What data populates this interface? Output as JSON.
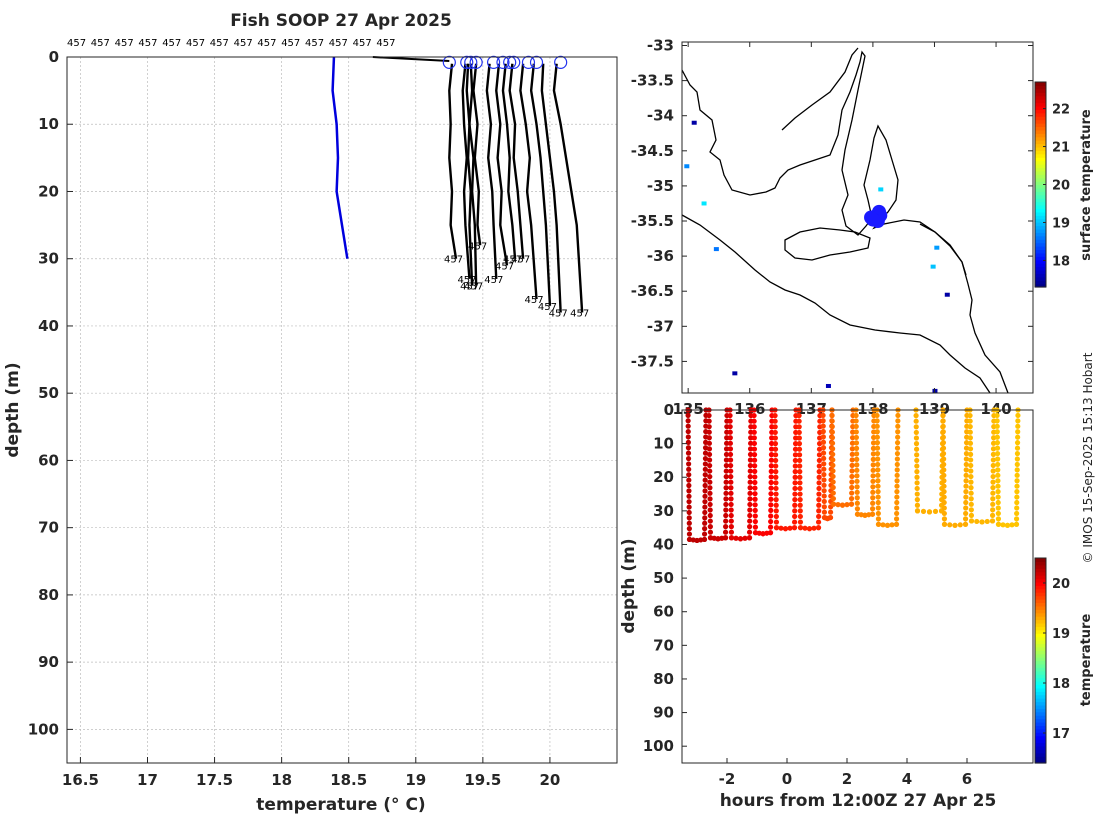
{
  "chart_data": [
    {
      "type": "line",
      "title": "Fish SOOP 27 Apr 2025",
      "xlabel": "temperature (° C)",
      "ylabel": "depth (m)",
      "xlim": [
        16.4,
        20.5
      ],
      "ylim": [
        105,
        0
      ],
      "y_reversed": true,
      "grid": true,
      "xticks": [
        "16.5",
        "17",
        "17.5",
        "18",
        "18.5",
        "19",
        "19.5",
        "20"
      ],
      "yticks": [
        "0",
        "10",
        "20",
        "30",
        "40",
        "50",
        "60",
        "70",
        "80",
        "90",
        "100"
      ],
      "top_labels": [
        "457",
        "457",
        "457",
        "457",
        "457",
        "457",
        "457",
        "457",
        "457",
        "457",
        "457",
        "457",
        "457",
        "457"
      ],
      "series": [
        {
          "color": "#0000dd",
          "x": [
            18.39,
            18.38,
            18.41,
            18.42,
            18.41,
            18.49
          ],
          "y": [
            0,
            5,
            10,
            15,
            20,
            30
          ]
        },
        {
          "color": "#000000",
          "x": [
            19.27,
            19.25,
            19.26,
            19.25,
            19.27,
            19.26,
            19.3
          ],
          "y": [
            1,
            5,
            10,
            15,
            20,
            25,
            30
          ]
        },
        {
          "color": "#000000",
          "x": [
            19.37,
            19.35,
            19.36,
            19.38,
            19.36,
            19.37,
            19.4
          ],
          "y": [
            1,
            5,
            10,
            15,
            20,
            25,
            33
          ]
        },
        {
          "color": "#000000",
          "x": [
            19.39,
            19.38,
            19.4,
            19.39,
            19.41,
            19.4,
            19.42
          ],
          "y": [
            1,
            5,
            10,
            15,
            20,
            25,
            34
          ]
        },
        {
          "color": "#000000",
          "x": [
            19.41,
            19.42,
            19.4,
            19.43,
            19.42,
            19.44,
            19.45
          ],
          "y": [
            1,
            5,
            10,
            15,
            20,
            25,
            34
          ]
        },
        {
          "color": "#000000",
          "x": [
            19.45,
            19.43,
            19.46,
            19.44,
            19.47,
            19.46,
            19.48
          ],
          "y": [
            1,
            5,
            10,
            15,
            20,
            25,
            28
          ]
        },
        {
          "color": "#000000",
          "x": [
            19.55,
            19.53,
            19.56,
            19.54,
            19.57,
            19.58,
            19.6
          ],
          "y": [
            1,
            5,
            10,
            15,
            20,
            25,
            33
          ]
        },
        {
          "color": "#000000",
          "x": [
            19.62,
            19.6,
            19.63,
            19.61,
            19.64,
            19.63,
            19.68
          ],
          "y": [
            1,
            5,
            10,
            15,
            20,
            25,
            31
          ]
        },
        {
          "color": "#000000",
          "x": [
            19.67,
            19.65,
            19.68,
            19.7,
            19.69,
            19.72,
            19.74
          ],
          "y": [
            1,
            5,
            10,
            15,
            20,
            25,
            30
          ]
        },
        {
          "color": "#000000",
          "x": [
            19.72,
            19.7,
            19.74,
            19.73,
            19.76,
            19.78,
            19.8
          ],
          "y": [
            1,
            5,
            10,
            15,
            20,
            25,
            30
          ]
        },
        {
          "color": "#000000",
          "x": [
            19.8,
            19.78,
            19.82,
            19.85,
            19.83,
            19.86,
            19.9
          ],
          "y": [
            1,
            5,
            10,
            15,
            20,
            25,
            36
          ]
        },
        {
          "color": "#000000",
          "x": [
            19.88,
            19.86,
            19.9,
            19.93,
            19.95,
            19.97,
            20.0
          ],
          "y": [
            1,
            5,
            10,
            15,
            20,
            25,
            37
          ]
        },
        {
          "color": "#000000",
          "x": [
            19.95,
            19.94,
            19.97,
            20.0,
            20.03,
            20.05,
            20.08
          ],
          "y": [
            1,
            5,
            10,
            15,
            20,
            25,
            38
          ]
        },
        {
          "color": "#000000",
          "x": [
            20.05,
            20.03,
            20.08,
            20.12,
            20.16,
            20.2,
            20.24
          ],
          "y": [
            1,
            5,
            10,
            15,
            20,
            25,
            38
          ]
        }
      ],
      "end_labels": [
        "457",
        "457",
        "457",
        "457",
        "457",
        "457",
        "457",
        "457",
        "457",
        "457",
        "457",
        "457",
        "457",
        "457"
      ],
      "markers_x": [
        19.25,
        19.38,
        19.41,
        19.45,
        19.58,
        19.65,
        19.7,
        19.73,
        19.84,
        19.9,
        20.08
      ]
    },
    {
      "type": "heatmap",
      "title": "",
      "xlabel": "",
      "ylabel": "",
      "xlim": [
        134.9,
        140.6
      ],
      "ylim": [
        -37.95,
        -32.95
      ],
      "xticks": [
        "135",
        "136",
        "137",
        "138",
        "139",
        "140"
      ],
      "yticks": [
        "-33",
        "-33.5",
        "-34",
        "-34.5",
        "-35",
        "-35.5",
        "-36",
        "-36.5",
        "-37",
        "-37.5"
      ],
      "colorbar": {
        "label": "surface temperature",
        "range": [
          17.3,
          22.7
        ],
        "ticks": [
          "18",
          "19",
          "20",
          "21",
          "22"
        ]
      },
      "track_points": [
        [
          138.05,
          -35.43
        ],
        [
          138.1,
          -35.37
        ],
        [
          138.12,
          -35.42
        ],
        [
          138.08,
          -35.5
        ],
        [
          138.0,
          -35.48
        ],
        [
          137.97,
          -35.45
        ]
      ],
      "sst_pixels": [
        [
          135.09,
          -34.1,
          17.5
        ],
        [
          134.97,
          -34.72,
          18.7
        ],
        [
          135.25,
          -35.25,
          19.2
        ],
        [
          135.45,
          -35.9,
          18.6
        ],
        [
          138.12,
          -35.05,
          19.1
        ],
        [
          139.03,
          -35.88,
          18.8
        ],
        [
          138.97,
          -36.15,
          19.0
        ],
        [
          139.2,
          -36.55,
          17.5
        ],
        [
          135.75,
          -37.67,
          17.5
        ],
        [
          137.27,
          -37.85,
          17.6
        ],
        [
          139.0,
          -37.92,
          17.5
        ]
      ]
    },
    {
      "type": "scatter",
      "title": "",
      "xlabel": "hours from 12:00Z 27 Apr 25",
      "ylabel": "depth (m)",
      "xlim": [
        -3.5,
        8.2
      ],
      "ylim": [
        105,
        0
      ],
      "y_reversed": true,
      "xticks": [
        "-2",
        "0",
        "2",
        "4",
        "6"
      ],
      "yticks": [
        "0",
        "10",
        "20",
        "30",
        "40",
        "50",
        "60",
        "70",
        "80",
        "90",
        "100"
      ],
      "colorbar": {
        "label": "temperature",
        "range": [
          16.4,
          20.5
        ],
        "ticks": [
          "17",
          "18",
          "19",
          "20"
        ]
      },
      "profiles": [
        {
          "t0": -3.3,
          "t1": -2.7,
          "max_depth": 38.5,
          "temp": 20.25
        },
        {
          "t0": -2.6,
          "t1": -2.0,
          "max_depth": 38.0,
          "temp": 20.2
        },
        {
          "t0": -1.9,
          "t1": -1.2,
          "max_depth": 38.0,
          "temp": 20.1
        },
        {
          "t0": -1.1,
          "t1": -0.5,
          "max_depth": 36.5,
          "temp": 20.0
        },
        {
          "t0": -0.4,
          "t1": 0.3,
          "max_depth": 35.0,
          "temp": 19.9
        },
        {
          "t0": 0.4,
          "t1": 1.1,
          "max_depth": 35.0,
          "temp": 19.85
        },
        {
          "t0": 1.2,
          "t1": 1.5,
          "max_depth": 32.0,
          "temp": 19.7
        },
        {
          "t0": 1.5,
          "t1": 2.2,
          "max_depth": 28.0,
          "temp": 19.55
        },
        {
          "t0": 2.3,
          "t1": 2.9,
          "max_depth": 31.0,
          "temp": 19.45
        },
        {
          "t0": 3.0,
          "t1": 3.7,
          "max_depth": 34.0,
          "temp": 19.4
        },
        {
          "t0": 4.3,
          "t1": 5.2,
          "max_depth": 30.0,
          "temp": 19.28
        },
        {
          "t0": 5.2,
          "t1": 6.0,
          "max_depth": 34.0,
          "temp": 19.3
        },
        {
          "t0": 6.1,
          "t1": 6.9,
          "max_depth": 33.0,
          "temp": 19.25
        },
        {
          "t0": 7.0,
          "t1": 7.7,
          "max_depth": 34.0,
          "temp": 19.2
        }
      ]
    }
  ],
  "credit": "© IMOS 15-Sep-2025 15:13 Hobart"
}
